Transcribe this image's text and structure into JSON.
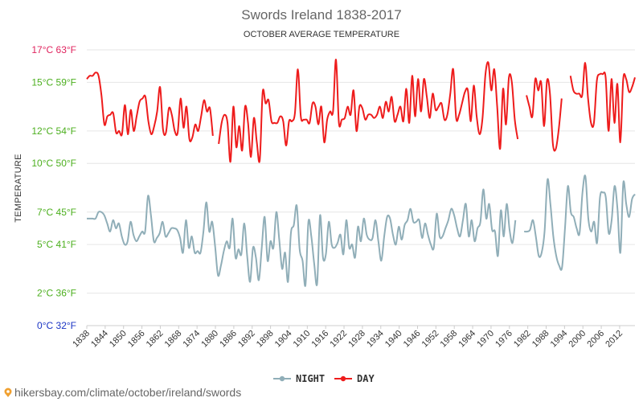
{
  "chart_data": {
    "type": "line",
    "title": "Swords Ireland 1838-2017",
    "subtitle": "OCTOBER AVERAGE TEMPERATURE",
    "ylabel": "TEMPERATURE",
    "ylim": [
      0,
      17
    ],
    "yticks": [
      {
        "value": 0,
        "label": "0°C 32°F",
        "color": "#1a34c4"
      },
      {
        "value": 2,
        "label": "2°C 36°F",
        "color": "#4caf1e"
      },
      {
        "value": 5,
        "label": "5°C 41°F",
        "color": "#4caf1e"
      },
      {
        "value": 7,
        "label": "7°C 45°F",
        "color": "#4caf1e"
      },
      {
        "value": 10,
        "label": "10°C 50°F",
        "color": "#4caf1e"
      },
      {
        "value": 12,
        "label": "12°C 54°F",
        "color": "#4caf1e"
      },
      {
        "value": 15,
        "label": "15°C 59°F",
        "color": "#4caf1e"
      },
      {
        "value": 17,
        "label": "17°C 63°F",
        "color": "#e0245e"
      }
    ],
    "xticks": [
      "1838",
      "1844",
      "1850",
      "1856",
      "1862",
      "1868",
      "1874",
      "1880",
      "1886",
      "1892",
      "1898",
      "1904",
      "1910",
      "1916",
      "1922",
      "1928",
      "1934",
      "1940",
      "1946",
      "1952",
      "1958",
      "1964",
      "1970",
      "1976",
      "1982",
      "1988",
      "1994",
      "2000",
      "2006",
      "2012"
    ],
    "x_start": 1838,
    "x_end": 2017,
    "grid": true,
    "legend_position": "bottom",
    "series": [
      {
        "name": "NIGHT",
        "color": "#90aeb8",
        "values": [
          6.6,
          6.6,
          6.6,
          6.6,
          7.0,
          7.0,
          6.8,
          6.3,
          5.8,
          6.5,
          6.0,
          6.3,
          5.5,
          5.0,
          5.2,
          6.4,
          5.6,
          5.2,
          5.5,
          5.8,
          5.8,
          8.0,
          6.8,
          5.2,
          5.4,
          5.7,
          6.4,
          5.5,
          5.7,
          6.0,
          6.0,
          5.9,
          5.4,
          4.5,
          6.5,
          4.8,
          5.5,
          4.5,
          4.6,
          4.5,
          5.8,
          7.6,
          5.8,
          6.4,
          4.9,
          3.1,
          3.7,
          4.6,
          5.2,
          4.8,
          6.6,
          4.2,
          4.7,
          4.4,
          6.3,
          4.3,
          2.7,
          4.8,
          4.2,
          2.8,
          4.8,
          6.7,
          4.0,
          5.2,
          4.8,
          7.0,
          5.3,
          3.5,
          4.5,
          2.7,
          5.7,
          6.2,
          7.4,
          4.7,
          4.0,
          2.5,
          6.4,
          5.5,
          3.8,
          2.6,
          6.8,
          4.2,
          4.4,
          6.4,
          5.0,
          4.8,
          5.1,
          5.6,
          4.4,
          6.5,
          4.8,
          5.0,
          4.2,
          6.1,
          5.2,
          6.6,
          5.6,
          5.3,
          5.4,
          6.5,
          5.2,
          4.0,
          5.5,
          6.7,
          6.6,
          5.6,
          5.0,
          6.1,
          5.3,
          6.2,
          6.5,
          7.2,
          6.4,
          6.4,
          6.5,
          5.4,
          6.3,
          5.6,
          5.0,
          4.8,
          6.9,
          5.5,
          5.5,
          6.0,
          6.5,
          7.2,
          6.8,
          6.0,
          5.5,
          6.5,
          7.5,
          5.5,
          6.5,
          5.2,
          6.0,
          6.4,
          8.4,
          6.6,
          7.5,
          5.9,
          5.8,
          4.3,
          7.1,
          5.5,
          7.5,
          5.9,
          5.1,
          6.5,
          null,
          null,
          5.8,
          5.8,
          5.9,
          6.5,
          5.5,
          4.3,
          4.5,
          5.8,
          9.0,
          7.5,
          5.5,
          4.3,
          3.7,
          3.6,
          6.0,
          8.6,
          7.0,
          6.7,
          6.0,
          5.7,
          8.2,
          9.2,
          6.6,
          5.8,
          6.4,
          5.1,
          7.9,
          8.2,
          7.9,
          5.7,
          6.5,
          8.6,
          7.2,
          4.5,
          8.8,
          7.5,
          6.7,
          7.8,
          8.1
        ]
      },
      {
        "name": "DAY",
        "color": "#ee1c1c",
        "values": [
          15.2,
          15.4,
          15.4,
          15.6,
          15.4,
          14.2,
          12.4,
          12.9,
          13.0,
          13.1,
          11.9,
          12.0,
          11.8,
          13.6,
          11.8,
          13.3,
          12.0,
          12.9,
          13.8,
          14.0,
          14.1,
          12.6,
          11.8,
          12.3,
          13.2,
          14.7,
          12.1,
          11.9,
          13.4,
          13.0,
          12.0,
          11.9,
          14.0,
          12.2,
          13.5,
          11.5,
          11.6,
          12.4,
          12.0,
          12.9,
          13.9,
          13.2,
          13.4,
          11.7,
          null,
          11.2,
          12.5,
          13.0,
          12.5,
          10.1,
          13.5,
          11.0,
          12.3,
          10.8,
          13.5,
          12.5,
          10.4,
          12.8,
          11.3,
          10.2,
          14.4,
          13.7,
          13.9,
          12.6,
          12.5,
          12.5,
          12.9,
          12.6,
          11.1,
          12.6,
          12.6,
          13.1,
          15.8,
          12.9,
          12.7,
          12.7,
          12.5,
          13.7,
          13.5,
          12.4,
          13.5,
          11.3,
          12.7,
          13.2,
          13.2,
          16.4,
          12.5,
          12.7,
          12.8,
          13.5,
          13.0,
          14.5,
          12.0,
          13.5,
          13.4,
          12.7,
          13.0,
          13.0,
          12.8,
          13.0,
          13.5,
          12.8,
          13.8,
          13.2,
          14.1,
          12.6,
          13.0,
          13.5,
          12.6,
          14.6,
          12.5,
          15.4,
          12.9,
          15.2,
          13.2,
          15.2,
          14.1,
          12.8,
          14.3,
          13.3,
          13.5,
          13.7,
          12.7,
          13.0,
          14.3,
          15.8,
          12.8,
          13.0,
          13.7,
          14.4,
          14.5,
          12.6,
          14.8,
          12.9,
          11.8,
          12.8,
          15.5,
          16.2,
          14.5,
          15.8,
          13.5,
          10.9,
          14.6,
          12.4,
          15.3,
          15.0,
          12.7,
          11.5,
          null,
          null,
          14.2,
          13.5,
          12.9,
          15.2,
          14.5,
          15.0,
          12.3,
          15.1,
          14.3,
          11.2,
          10.9,
          12.1,
          14.0,
          null,
          null,
          15.4,
          14.5,
          14.3,
          14.3,
          14.2,
          16.2,
          14.0,
          12.5,
          12.5,
          15.1,
          15.5,
          15.5,
          15.3,
          12.0,
          15.2,
          12.5,
          14.9,
          11.3,
          15.2,
          15.2,
          14.4,
          14.7,
          15.3
        ]
      }
    ]
  },
  "footer": {
    "text": "hikersbay.com/climate/october/ireland/swords"
  }
}
